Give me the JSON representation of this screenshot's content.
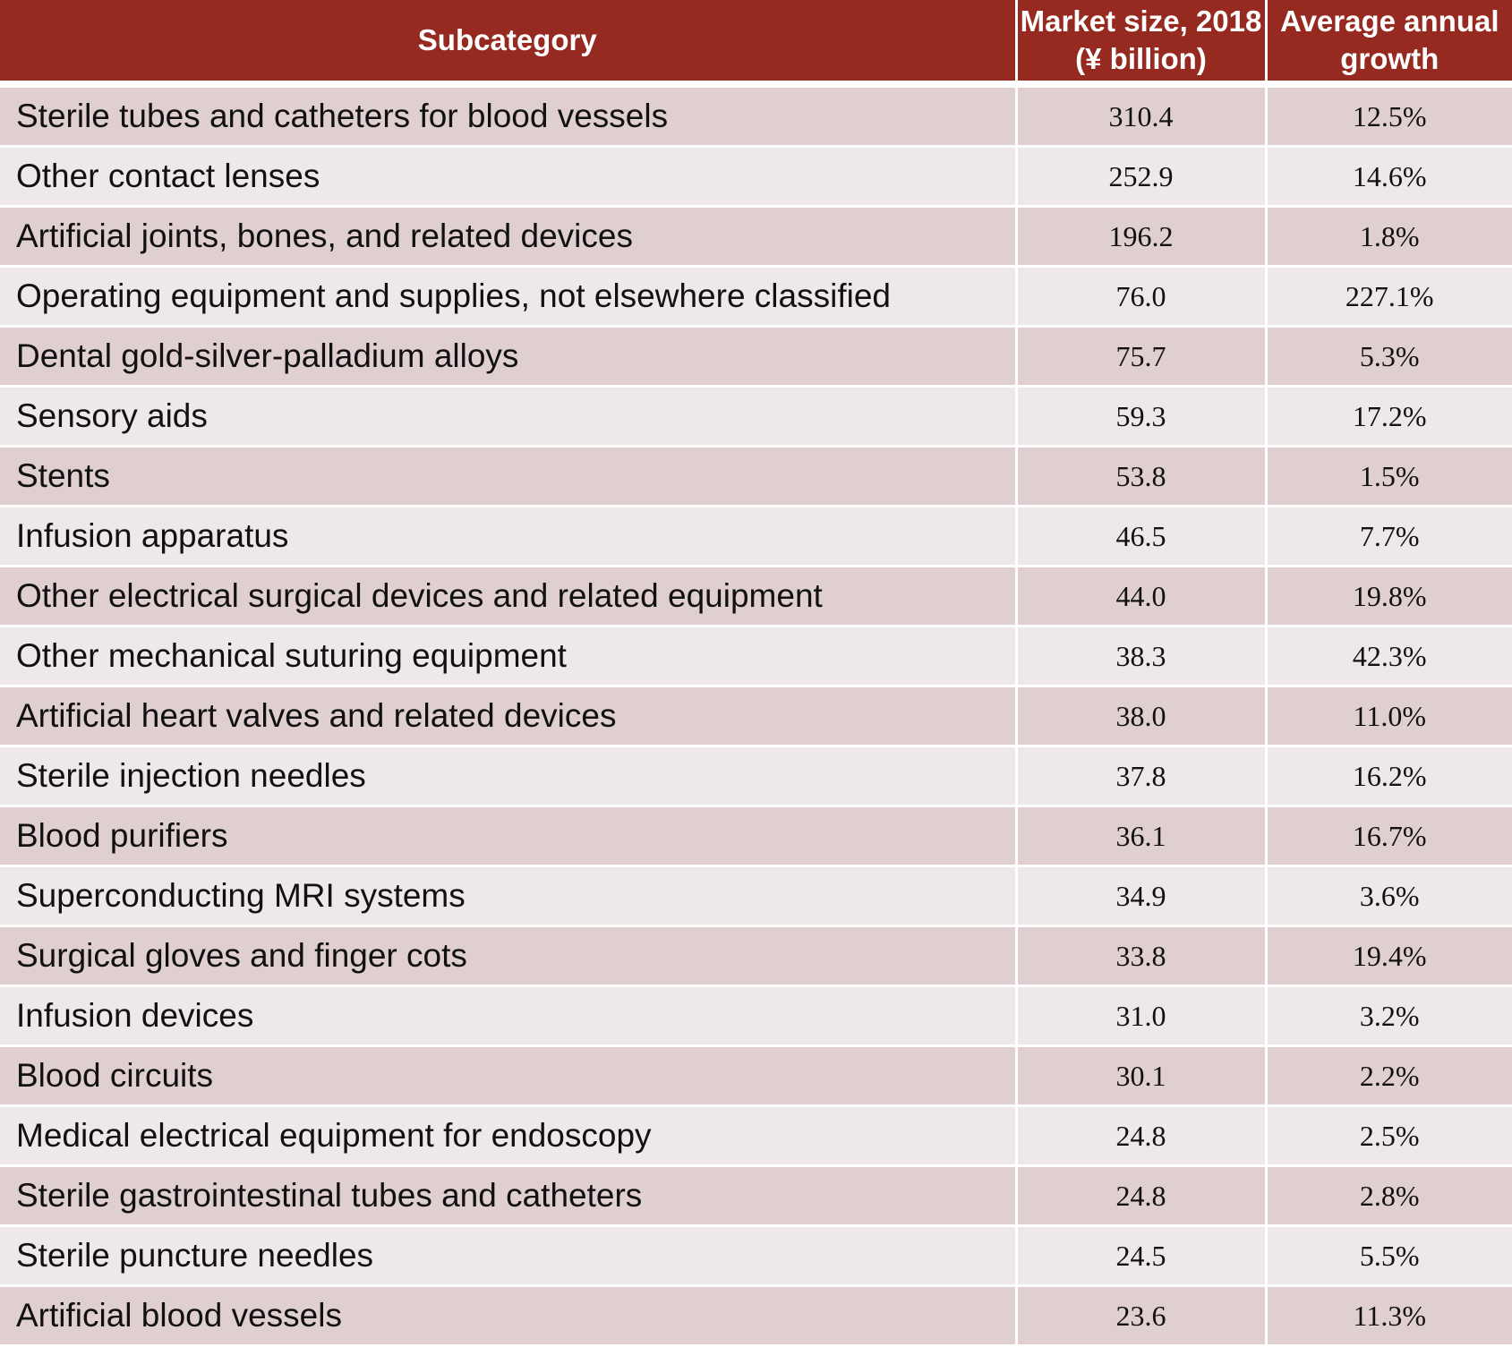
{
  "chart_data": {
    "type": "table",
    "columns": [
      "Subcategory",
      "Market size, 2018 (¥ billion)",
      "Average annual growth"
    ],
    "header": {
      "subcategory": "Subcategory",
      "market_size_line1": "Market size, 2018",
      "market_size_line2": "(¥ billion)",
      "growth_line1": "Average annual",
      "growth_line2": "growth"
    },
    "rows": [
      {
        "subcategory": "Sterile tubes and catheters for blood vessels",
        "market_size": "310.4",
        "growth": "12.5%"
      },
      {
        "subcategory": "Other contact lenses",
        "market_size": "252.9",
        "growth": "14.6%"
      },
      {
        "subcategory": "Artificial joints, bones, and related devices",
        "market_size": "196.2",
        "growth": "1.8%"
      },
      {
        "subcategory": "Operating equipment and supplies, not elsewhere classified",
        "market_size": "76.0",
        "growth": "227.1%"
      },
      {
        "subcategory": "Dental gold-silver-palladium alloys",
        "market_size": "75.7",
        "growth": "5.3%"
      },
      {
        "subcategory": "Sensory aids",
        "market_size": "59.3",
        "growth": "17.2%"
      },
      {
        "subcategory": "Stents",
        "market_size": "53.8",
        "growth": "1.5%"
      },
      {
        "subcategory": "Infusion apparatus",
        "market_size": "46.5",
        "growth": "7.7%"
      },
      {
        "subcategory": "Other electrical surgical devices and related equipment",
        "market_size": "44.0",
        "growth": "19.8%"
      },
      {
        "subcategory": "Other mechanical suturing equipment",
        "market_size": "38.3",
        "growth": "42.3%"
      },
      {
        "subcategory": "Artificial heart valves and related devices",
        "market_size": "38.0",
        "growth": "11.0%"
      },
      {
        "subcategory": "Sterile injection needles",
        "market_size": "37.8",
        "growth": "16.2%"
      },
      {
        "subcategory": "Blood purifiers",
        "market_size": "36.1",
        "growth": "16.7%"
      },
      {
        "subcategory": "Superconducting MRI systems",
        "market_size": "34.9",
        "growth": "3.6%"
      },
      {
        "subcategory": "Surgical gloves and finger cots",
        "market_size": "33.8",
        "growth": "19.4%"
      },
      {
        "subcategory": "Infusion devices",
        "market_size": "31.0",
        "growth": "3.2%"
      },
      {
        "subcategory": "Blood circuits",
        "market_size": "30.1",
        "growth": "2.2%"
      },
      {
        "subcategory": "Medical electrical equipment for endoscopy",
        "market_size": "24.8",
        "growth": "2.5%"
      },
      {
        "subcategory": "Sterile gastrointestinal tubes and catheters",
        "market_size": "24.8",
        "growth": "2.8%"
      },
      {
        "subcategory": "Sterile puncture needles",
        "market_size": "24.5",
        "growth": "5.5%"
      },
      {
        "subcategory": "Artificial blood vessels",
        "market_size": "23.6",
        "growth": "11.3%"
      }
    ],
    "colors": {
      "header_bg": "#962a20",
      "header_text": "#ffffff",
      "row_odd": "#e0cfd0",
      "row_even": "#efe8e8"
    }
  }
}
